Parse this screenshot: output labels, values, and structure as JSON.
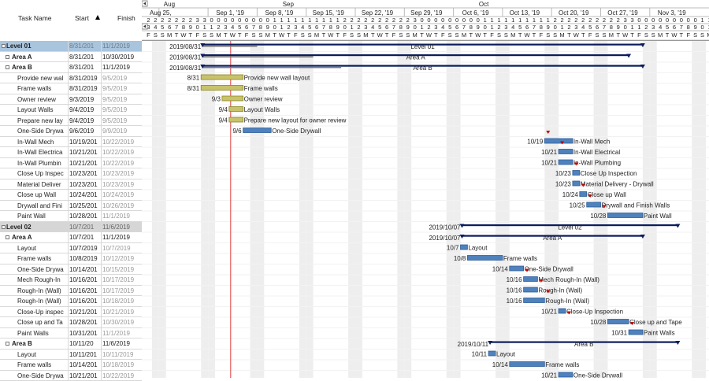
{
  "grid": {
    "headers": {
      "name": "Task Name",
      "start": "Start",
      "finish": "Finish"
    },
    "rows": [
      {
        "kind": "level1",
        "name": "Level 01",
        "start": "8/31/201",
        "finish": "11/1/2019"
      },
      {
        "kind": "area",
        "name": "Area A",
        "start": "8/31/201",
        "finish": "10/30/2019",
        "toggle": "+"
      },
      {
        "kind": "area",
        "name": "Area B",
        "start": "8/31/201",
        "finish": "11/1/2019",
        "toggle": "-"
      },
      {
        "kind": "task",
        "name": "Provide new wal",
        "start": "8/31/2019",
        "finish": "9/5/2019"
      },
      {
        "kind": "task",
        "name": "Frame walls",
        "start": "8/31/2019",
        "finish": "9/5/2019"
      },
      {
        "kind": "task",
        "name": "Owner review",
        "start": "9/3/2019",
        "finish": "9/5/2019"
      },
      {
        "kind": "task",
        "name": "Layout Walls",
        "start": "9/4/2019",
        "finish": "9/5/2019"
      },
      {
        "kind": "task",
        "name": "Prepare new lay",
        "start": "9/4/2019",
        "finish": "9/5/2019"
      },
      {
        "kind": "task",
        "name": "One-Side Drywa",
        "start": "9/6/2019",
        "finish": "9/9/2019"
      },
      {
        "kind": "task",
        "name": "In-Wall Mech",
        "start": "10/19/201",
        "finish": "10/22/2019"
      },
      {
        "kind": "task",
        "name": "In-Wall Electrica",
        "start": "10/21/201",
        "finish": "10/22/2019"
      },
      {
        "kind": "task",
        "name": "In-Wall Plumbin",
        "start": "10/21/201",
        "finish": "10/22/2019"
      },
      {
        "kind": "task",
        "name": "Close Up Inspec",
        "start": "10/23/201",
        "finish": "10/23/2019"
      },
      {
        "kind": "task",
        "name": "Material Deliver",
        "start": "10/23/201",
        "finish": "10/23/2019"
      },
      {
        "kind": "task",
        "name": "Close up Wall",
        "start": "10/24/201",
        "finish": "10/24/2019"
      },
      {
        "kind": "task",
        "name": "Drywall and Fini",
        "start": "10/25/201",
        "finish": "10/26/2019"
      },
      {
        "kind": "task",
        "name": "Paint Wall",
        "start": "10/28/201",
        "finish": "11/1/2019"
      },
      {
        "kind": "level2",
        "name": "Level 02",
        "start": "10/7/201",
        "finish": "11/6/2019"
      },
      {
        "kind": "area",
        "name": "Area A",
        "start": "10/7/201",
        "finish": "11/1/2019",
        "toggle": "-"
      },
      {
        "kind": "task",
        "name": "Layout",
        "start": "10/7/2019",
        "finish": "10/7/2019"
      },
      {
        "kind": "task",
        "name": "Frame walls",
        "start": "10/8/2019",
        "finish": "10/12/2019"
      },
      {
        "kind": "task",
        "name": "One-Side Drywa",
        "start": "10/14/201",
        "finish": "10/15/2019"
      },
      {
        "kind": "task",
        "name": "Mech Rough-In",
        "start": "10/16/201",
        "finish": "10/17/2019"
      },
      {
        "kind": "task",
        "name": "Rough-In (Wall)",
        "start": "10/16/201",
        "finish": "10/17/2019"
      },
      {
        "kind": "task",
        "name": "Rough-In (Wall)",
        "start": "10/16/201",
        "finish": "10/18/2019"
      },
      {
        "kind": "task",
        "name": "Close-Up inspec",
        "start": "10/21/201",
        "finish": "10/21/2019"
      },
      {
        "kind": "task",
        "name": "Close up and Ta",
        "start": "10/28/201",
        "finish": "10/30/2019"
      },
      {
        "kind": "task",
        "name": "Paint Walls",
        "start": "10/31/201",
        "finish": "11/1/2019"
      },
      {
        "kind": "area",
        "name": "Area B",
        "start": "10/11/20",
        "finish": "11/6/2019",
        "toggle": "-"
      },
      {
        "kind": "task",
        "name": "Layout",
        "start": "10/11/201",
        "finish": "10/11/2019"
      },
      {
        "kind": "task",
        "name": "Frame walls",
        "start": "10/14/201",
        "finish": "10/18/2019"
      },
      {
        "kind": "task",
        "name": "One-Side Drywa",
        "start": "10/21/201",
        "finish": "10/22/2019"
      }
    ]
  },
  "timeline": {
    "months": [
      {
        "label": "Aug",
        "start": "2019-08-25"
      },
      {
        "label": "Sep",
        "start": "2019-09-15"
      },
      {
        "label": "Oct",
        "start": "2019-10-13"
      }
    ],
    "weeks": [
      {
        "label": "Aug 25,",
        "date": "2019-08-25"
      },
      {
        "label": "Sep 1, '19",
        "date": "2019-09-01"
      },
      {
        "label": "Sep 8, '19",
        "date": "2019-09-08"
      },
      {
        "label": "Sep 15, '19",
        "date": "2019-09-15"
      },
      {
        "label": "Sep 22, '19",
        "date": "2019-09-22"
      },
      {
        "label": "Sep 29, '19",
        "date": "2019-09-29"
      },
      {
        "label": "Oct 6, '19",
        "date": "2019-10-06"
      },
      {
        "label": "Oct 13, '19",
        "date": "2019-10-13"
      },
      {
        "label": "Oct 20, '19",
        "date": "2019-10-20"
      },
      {
        "label": "Oct 27, '19",
        "date": "2019-10-27"
      },
      {
        "label": "Nov 3, '19",
        "date": "2019-11-03"
      }
    ],
    "day_letters": [
      "S",
      "M",
      "T",
      "W",
      "T",
      "F",
      "S"
    ],
    "today": "2019-09-04",
    "nav_arrow": "left-arrow-icon",
    "colors": {
      "task_bar": "#4f81bd",
      "done_bar": "#c8c36a",
      "summary": "#0b1c5c",
      "weekend": "#eeeeee",
      "today": "#e04040",
      "dep_arrow": "#c00000"
    }
  },
  "bars": [
    {
      "row": 0,
      "type": "summary",
      "start": "2019-08-31",
      "end": "2019-11-01",
      "label": "Level 01",
      "left_label": "2019/08/31",
      "progress_end": "2019-09-08"
    },
    {
      "row": 1,
      "type": "summary",
      "start": "2019-08-31",
      "end": "2019-10-30",
      "label": "Area A",
      "left_label": "2019/08/31",
      "progress_end": "2019-09-16"
    },
    {
      "row": 2,
      "type": "summary",
      "start": "2019-08-31",
      "end": "2019-11-01",
      "label": "Area B",
      "left_label": "2019/08/31",
      "progress_end": "2019-09-20"
    },
    {
      "row": 3,
      "type": "done",
      "start": "2019-08-31",
      "end": "2019-09-05",
      "label": "Provide new wall layout",
      "left_label": "8/31"
    },
    {
      "row": 4,
      "type": "done",
      "start": "2019-08-31",
      "end": "2019-09-05",
      "label": "Frame walls",
      "left_label": "8/31"
    },
    {
      "row": 5,
      "type": "done",
      "start": "2019-09-03",
      "end": "2019-09-05",
      "label": "Owner review",
      "left_label": "9/3"
    },
    {
      "row": 6,
      "type": "done",
      "start": "2019-09-04",
      "end": "2019-09-05",
      "label": "Layout Walls",
      "left_label": "9/4"
    },
    {
      "row": 7,
      "type": "done",
      "start": "2019-09-04",
      "end": "2019-09-05",
      "label": "Prepare new layout for owner review",
      "left_label": "9/4"
    },
    {
      "row": 8,
      "type": "task",
      "start": "2019-09-06",
      "end": "2019-09-09",
      "label": "One-Side Drywall",
      "left_label": "9/6"
    },
    {
      "row": 9,
      "type": "task",
      "start": "2019-10-19",
      "end": "2019-10-22",
      "label": "In-Wall Mech",
      "left_label": "10/19"
    },
    {
      "row": 10,
      "type": "task",
      "start": "2019-10-21",
      "end": "2019-10-22",
      "label": "In-Wall Electrical",
      "left_label": "10/21"
    },
    {
      "row": 11,
      "type": "task",
      "start": "2019-10-21",
      "end": "2019-10-22",
      "label": "In-Wall Plumbing",
      "left_label": "10/21"
    },
    {
      "row": 12,
      "type": "task",
      "start": "2019-10-23",
      "end": "2019-10-23",
      "label": "Close Up Inspection",
      "left_label": "10/23"
    },
    {
      "row": 13,
      "type": "task",
      "start": "2019-10-23",
      "end": "2019-10-23",
      "label": "Material Delivery - Drywall",
      "left_label": "10/23"
    },
    {
      "row": 14,
      "type": "task",
      "start": "2019-10-24",
      "end": "2019-10-24",
      "label": "Close up Wall",
      "left_label": "10/24"
    },
    {
      "row": 15,
      "type": "task",
      "start": "2019-10-25",
      "end": "2019-10-26",
      "label": "Drywall and Finish Walls",
      "left_label": "10/25"
    },
    {
      "row": 16,
      "type": "task",
      "start": "2019-10-28",
      "end": "2019-11-01",
      "label": "Paint Wall",
      "left_label": "10/28"
    },
    {
      "row": 17,
      "type": "summary",
      "start": "2019-10-07",
      "end": "2019-11-06",
      "label": "Level 02",
      "left_label": "2019/10/07"
    },
    {
      "row": 18,
      "type": "summary",
      "start": "2019-10-07",
      "end": "2019-11-01",
      "label": "Area A",
      "left_label": "2019/10/07"
    },
    {
      "row": 19,
      "type": "task",
      "start": "2019-10-07",
      "end": "2019-10-07",
      "label": "Layout",
      "left_label": "10/7"
    },
    {
      "row": 20,
      "type": "task",
      "start": "2019-10-08",
      "end": "2019-10-12",
      "label": "Frame walls",
      "left_label": "10/8"
    },
    {
      "row": 21,
      "type": "task",
      "start": "2019-10-14",
      "end": "2019-10-15",
      "label": "One-Side Drywall",
      "left_label": "10/14"
    },
    {
      "row": 22,
      "type": "task",
      "start": "2019-10-16",
      "end": "2019-10-17",
      "label": "Mech Rough-In (Wall)",
      "left_label": "10/16"
    },
    {
      "row": 23,
      "type": "task",
      "start": "2019-10-16",
      "end": "2019-10-17",
      "label": "Rough-In (Wall)",
      "left_label": "10/16"
    },
    {
      "row": 24,
      "type": "task",
      "start": "2019-10-16",
      "end": "2019-10-18",
      "label": "Rough-In (Wall)",
      "left_label": "10/16"
    },
    {
      "row": 25,
      "type": "task",
      "start": "2019-10-21",
      "end": "2019-10-21",
      "label": "Close-Up Inspection",
      "left_label": "10/21"
    },
    {
      "row": 26,
      "type": "task",
      "start": "2019-10-28",
      "end": "2019-10-30",
      "label": "Close up and Tape",
      "left_label": "10/28"
    },
    {
      "row": 27,
      "type": "task",
      "start": "2019-10-31",
      "end": "2019-11-01",
      "label": "Paint Walls",
      "left_label": "10/31"
    },
    {
      "row": 28,
      "type": "summary",
      "start": "2019-10-11",
      "end": "2019-11-06",
      "label": "Area B",
      "left_label": "2019/10/11"
    },
    {
      "row": 29,
      "type": "task",
      "start": "2019-10-11",
      "end": "2019-10-11",
      "label": "Layout",
      "left_label": "10/11"
    },
    {
      "row": 30,
      "type": "task",
      "start": "2019-10-14",
      "end": "2019-10-18",
      "label": "Frame walls",
      "left_label": "10/14"
    },
    {
      "row": 31,
      "type": "task",
      "start": "2019-10-21",
      "end": "2019-10-22",
      "label": "One-Side Drywall",
      "left_label": "10/21"
    }
  ],
  "dep_markers": [
    {
      "row": 8,
      "date": "2019-10-19"
    },
    {
      "row": 9,
      "date": "2019-10-21"
    },
    {
      "row": 11,
      "date": "2019-10-23"
    },
    {
      "row": 13,
      "date": "2019-10-24"
    },
    {
      "row": 14,
      "date": "2019-10-25"
    },
    {
      "row": 15,
      "date": "2019-10-27"
    },
    {
      "row": 21,
      "date": "2019-10-16"
    },
    {
      "row": 22,
      "date": "2019-10-18"
    },
    {
      "row": 23,
      "date": "2019-10-19"
    },
    {
      "row": 25,
      "date": "2019-10-22"
    },
    {
      "row": 26,
      "date": "2019-10-31"
    }
  ]
}
